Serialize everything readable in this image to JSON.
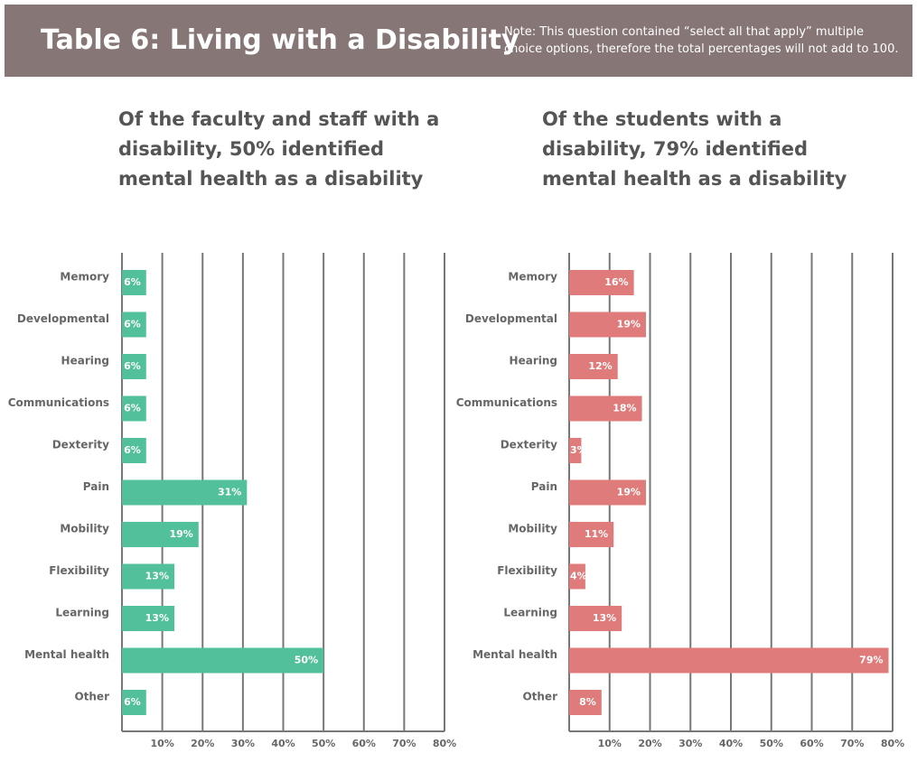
{
  "header": {
    "title": "Table 6:  Living with a Disability",
    "note": "Note: This question contained “select all that apply” multiple choice options, therefore the total percentages will not add to 100."
  },
  "chart_data": [
    {
      "type": "hbar",
      "title": [
        "Of the faculty and staff with a",
        "disability, 50% identified",
        "mental health as a disability"
      ],
      "categories": [
        "Memory",
        "Developmental",
        "Hearing",
        "Communications",
        "Dexterity",
        "Pain",
        "Mobility",
        "Flexibility",
        "Learning",
        "Mental health",
        "Other"
      ],
      "values": [
        6,
        6,
        6,
        6,
        6,
        31,
        19,
        13,
        13,
        50,
        6
      ],
      "value_labels": [
        "6%",
        "6%",
        "6%",
        "6%",
        "6%",
        "31%",
        "19%",
        "13%",
        "13%",
        "50%",
        "6%"
      ],
      "color": "#52c09a",
      "xlim": [
        0,
        80
      ],
      "xticks": [
        {
          "value": 10,
          "label": "10%"
        },
        {
          "value": 20,
          "label": "20%"
        },
        {
          "value": 30,
          "label": "30%"
        },
        {
          "value": 40,
          "label": "40%"
        },
        {
          "value": 50,
          "label": "50%"
        },
        {
          "value": 60,
          "label": "60%"
        },
        {
          "value": 70,
          "label": "70%"
        },
        {
          "value": 80,
          "label": "80%"
        }
      ],
      "grid": true
    },
    {
      "type": "hbar",
      "title": [
        "Of the students with a",
        "disability, 79% identified",
        "mental health as a disability"
      ],
      "categories": [
        "Memory",
        "Developmental",
        "Hearing",
        "Communications",
        "Dexterity",
        "Pain",
        "Mobility",
        "Flexibility",
        "Learning",
        "Mental health",
        "Other"
      ],
      "values": [
        16,
        19,
        12,
        18,
        3,
        19,
        11,
        4,
        13,
        79,
        8
      ],
      "value_labels": [
        "16%",
        "19%",
        "12%",
        "18%",
        "3%",
        "19%",
        "11%",
        "4%",
        "13%",
        "79%",
        "8%"
      ],
      "color": "#e07b7b",
      "xlim": [
        0,
        80
      ],
      "xticks": [
        {
          "value": 10,
          "label": "10%"
        },
        {
          "value": 20,
          "label": "20%"
        },
        {
          "value": 30,
          "label": "30%"
        },
        {
          "value": 40,
          "label": "40%"
        },
        {
          "value": 50,
          "label": "50%"
        },
        {
          "value": 60,
          "label": "60%"
        },
        {
          "value": 70,
          "label": "70%"
        },
        {
          "value": 80,
          "label": "80%"
        }
      ],
      "grid": true
    }
  ]
}
